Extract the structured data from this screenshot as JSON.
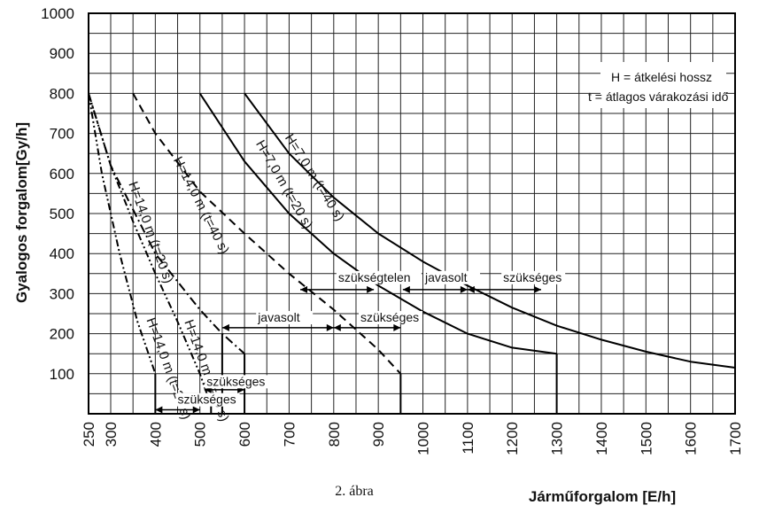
{
  "chart_data": {
    "type": "line",
    "xlabel": "Járműforgalom [E/h]",
    "ylabel": "Gyalogos forgalom[Gy/h]",
    "xlim": [
      250,
      1700
    ],
    "ylim": [
      0,
      1000
    ],
    "x_ticks": [
      250,
      300,
      400,
      500,
      600,
      700,
      800,
      900,
      1000,
      1100,
      1200,
      1300,
      1400,
      1500,
      1600,
      1700
    ],
    "y_ticks": [
      100,
      200,
      300,
      400,
      500,
      600,
      700,
      800,
      900,
      1000
    ],
    "grid": true,
    "legend": {
      "position": "top-right",
      "lines": [
        "H = átkelési hossz",
        "t = átlagos várakozási idő"
      ]
    },
    "series": [
      {
        "name": "H=7,0 m (t=40 s)",
        "style": "solid",
        "x": [
          600,
          700,
          800,
          900,
          1000,
          1100,
          1200,
          1300,
          1400,
          1500,
          1600,
          1700
        ],
        "y": [
          800,
          650,
          540,
          450,
          380,
          320,
          265,
          220,
          185,
          155,
          130,
          115
        ]
      },
      {
        "name": "H=7,0 m (t=20 s)",
        "style": "solid",
        "x": [
          500,
          600,
          700,
          800,
          900,
          1000,
          1100,
          1200,
          1300
        ],
        "y": [
          800,
          630,
          500,
          400,
          320,
          255,
          200,
          165,
          150
        ]
      },
      {
        "name": "H=14,0 m (t=40 s)",
        "style": "dashed",
        "x": [
          350,
          400,
          500,
          600,
          700,
          800,
          900,
          950
        ],
        "y": [
          800,
          700,
          555,
          450,
          350,
          260,
          160,
          100
        ]
      },
      {
        "name": "H=14,0 m (t=20 s)",
        "style": "dashdot",
        "x": [
          250,
          300,
          400,
          500,
          550,
          600
        ],
        "y": [
          800,
          620,
          400,
          260,
          200,
          150
        ]
      },
      {
        "name": "H=14,0 m (t=40 s)",
        "style": "dashdotdot",
        "x": [
          250,
          300,
          350,
          400,
          450,
          500,
          525
        ],
        "y": [
          800,
          620,
          480,
          350,
          230,
          100,
          20
        ]
      },
      {
        "name": "H=14,0 m (t=20 s)",
        "style": "dashdotdot",
        "x": [
          250,
          280,
          320,
          360,
          400
        ],
        "y": [
          800,
          600,
          400,
          230,
          100
        ]
      }
    ],
    "curve_labels": [
      {
        "text": "H=7,0 m (t=40 s)",
        "x": 690,
        "y": 690,
        "angle": 58
      },
      {
        "text": "H=7,0 m (t=20 s)",
        "x": 625,
        "y": 675,
        "angle": 60
      },
      {
        "text": "H=14,0 m (t=40 s)",
        "x": 440,
        "y": 635,
        "angle": 63
      },
      {
        "text": "H=14,0 m (t=20 s)",
        "x": 340,
        "y": 575,
        "angle": 70
      },
      {
        "text": "H=14,0 m (t=40 s)",
        "x": 465,
        "y": 230,
        "angle": 70
      },
      {
        "text": "H=14,0 m (t=20 s)",
        "x": 380,
        "y": 235,
        "angle": 70
      }
    ],
    "zone_labels": [
      {
        "text": "szükségtelen",
        "x": 810,
        "y": 330
      },
      {
        "text": "javasolt",
        "x": 1005,
        "y": 330
      },
      {
        "text": "szükséges",
        "x": 1180,
        "y": 330
      },
      {
        "text": "javasolt",
        "x": 630,
        "y": 230
      },
      {
        "text": "szükséges",
        "x": 860,
        "y": 230
      },
      {
        "text": "szükséges",
        "x": 515,
        "y": 70
      },
      {
        "text": "szükséges",
        "x": 450,
        "y": 25
      }
    ],
    "caption": "2. ábra"
  }
}
